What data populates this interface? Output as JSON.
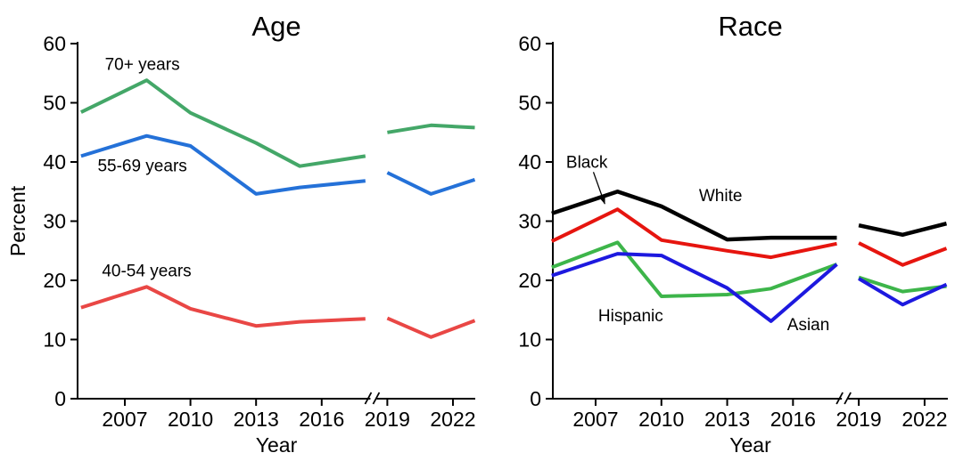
{
  "figure": {
    "background": "#ffffff",
    "text_color": "#000000",
    "axis_color": "#000000"
  },
  "chart_data": [
    {
      "type": "line",
      "title": "Age",
      "xlabel": "Year",
      "ylabel": "Percent",
      "ylim": [
        0,
        60
      ],
      "yticks": [
        0,
        10,
        20,
        30,
        40,
        50,
        60
      ],
      "xticks": [
        2007,
        2010,
        2013,
        2016,
        2019,
        2022
      ],
      "xlim": [
        2004.84,
        2023.02
      ],
      "axis_break_x": 2018.35,
      "grid": false,
      "legend_position": "inline-annotations",
      "x_segments": [
        [
          2005,
          2008,
          2010,
          2013,
          2015,
          2018
        ],
        [
          2019,
          2021,
          2023
        ]
      ],
      "series": [
        {
          "name": "70+ years",
          "color": "#44a768",
          "width": 4,
          "values": [
            [
              48.4,
              53.8,
              48.3,
              43.2,
              39.3,
              41.0
            ],
            [
              45.0,
              46.2,
              45.8
            ]
          ]
        },
        {
          "name": "55-69 years",
          "color": "#2471d8",
          "width": 4,
          "values": [
            [
              41.0,
              44.4,
              42.7,
              34.6,
              35.7,
              36.8
            ],
            [
              38.2,
              34.6,
              37.0
            ]
          ]
        },
        {
          "name": "40-54 years",
          "color": "#e94745",
          "width": 4,
          "values": [
            [
              15.4,
              18.9,
              15.2,
              12.3,
              13.0,
              13.5
            ],
            [
              13.6,
              10.4,
              13.2
            ]
          ]
        }
      ],
      "annotations": [
        {
          "text": "70+ years",
          "x": 2007.8,
          "y": 56.6
        },
        {
          "text": "55-69 years",
          "x": 2007.8,
          "y": 39.4
        },
        {
          "text": "40-54 years",
          "x": 2008.0,
          "y": 21.7
        }
      ]
    },
    {
      "type": "line",
      "title": "Race",
      "xlabel": "Year",
      "ylabel": "",
      "ylim": [
        0,
        60
      ],
      "yticks": [
        0,
        10,
        20,
        30,
        40,
        50,
        60
      ],
      "xticks": [
        2007,
        2010,
        2013,
        2016,
        2019,
        2022
      ],
      "xlim": [
        2005.05,
        2023.06
      ],
      "axis_break_x": 2018.35,
      "grid": false,
      "legend_position": "inline-annotations",
      "x_segments": [
        [
          2005,
          2008,
          2010,
          2013,
          2015,
          2018
        ],
        [
          2019,
          2021,
          2023
        ]
      ],
      "series": [
        {
          "name": "White",
          "color": "#000000",
          "width": 4.5,
          "values": [
            [
              31.3,
              35.0,
              32.5,
              26.9,
              27.2,
              27.2
            ],
            [
              29.3,
              27.7,
              29.6
            ]
          ]
        },
        {
          "name": "Black",
          "color": "#e6150f",
          "width": 4,
          "values": [
            [
              26.6,
              32.0,
              26.8,
              25.0,
              23.9,
              26.2
            ],
            [
              26.3,
              22.6,
              25.4
            ]
          ]
        },
        {
          "name": "Hispanic",
          "color": "#3db54a",
          "width": 4,
          "values": [
            [
              22.2,
              26.4,
              17.3,
              17.6,
              18.6,
              22.7
            ],
            [
              20.5,
              18.1,
              19.0
            ]
          ]
        },
        {
          "name": "Asian",
          "color": "#1d19df",
          "width": 4,
          "values": [
            [
              20.8,
              24.5,
              24.2,
              18.7,
              13.1,
              22.7
            ],
            [
              20.3,
              15.9,
              19.3
            ]
          ]
        }
      ],
      "annotations": [
        {
          "text": "Black",
          "x": 2006.6,
          "y": 40.0,
          "arrow": {
            "x1": 2006.9,
            "y1": 38.3,
            "x2": 2007.42,
            "y2": 32.9
          }
        },
        {
          "text": "White",
          "x": 2012.7,
          "y": 34.4
        },
        {
          "text": "Hispanic",
          "x": 2008.6,
          "y": 14.1
        },
        {
          "text": "Asian",
          "x": 2016.7,
          "y": 12.6
        }
      ]
    }
  ]
}
